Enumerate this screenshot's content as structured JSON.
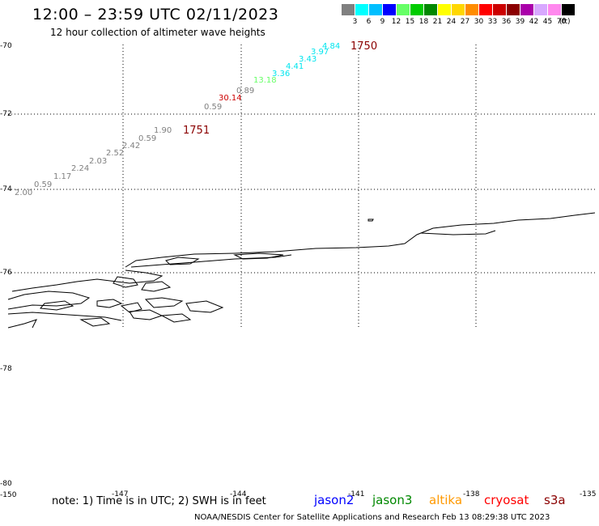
{
  "title": "12:00 – 23:59 UTC 02/11/2023",
  "subtitle": "12 hour collection of altimeter wave heights",
  "legend": {
    "unit": "(ft)",
    "items": [
      {
        "label": "3",
        "color": "#808080"
      },
      {
        "label": "6",
        "color": "#00ffff"
      },
      {
        "label": "9",
        "color": "#00bfff"
      },
      {
        "label": "12",
        "color": "#0000ff"
      },
      {
        "label": "15",
        "color": "#66ff66"
      },
      {
        "label": "18",
        "color": "#00cc00"
      },
      {
        "label": "21",
        "color": "#008800"
      },
      {
        "label": "24",
        "color": "#ffff00"
      },
      {
        "label": "27",
        "color": "#ffd700"
      },
      {
        "label": "30",
        "color": "#ff8c00"
      },
      {
        "label": "33",
        "color": "#ff0000"
      },
      {
        "label": "36",
        "color": "#cc0000"
      },
      {
        "label": "39",
        "color": "#8b0000"
      },
      {
        "label": "42",
        "color": "#aa00aa"
      },
      {
        "label": "45",
        "color": "#d8a8ff"
      },
      {
        "label": "70",
        "color": "#ff88ee"
      },
      {
        "label": "",
        "color": "#000000"
      }
    ]
  },
  "axes": {
    "lat_labels": [
      "-70",
      "-72",
      "-74",
      "-76",
      "-78",
      "-80"
    ],
    "lon_labels": [
      "-150",
      "-147",
      "-144",
      "-141",
      "-138",
      "-135"
    ]
  },
  "passes": [
    {
      "label": "1750"
    },
    {
      "label": "1751"
    }
  ],
  "observations": [
    {
      "value": "4.84",
      "color": "#00e5ee"
    },
    {
      "value": "3.97",
      "color": "#00e5ee"
    },
    {
      "value": "3.43",
      "color": "#00e5ee"
    },
    {
      "value": "4.41",
      "color": "#00e5ee"
    },
    {
      "value": "3.36",
      "color": "#00e5ee"
    },
    {
      "value": "13.18",
      "color": "#66ff66"
    },
    {
      "value": "0.89",
      "color": "#808080"
    },
    {
      "value": "30.14",
      "color": "#cc0000"
    },
    {
      "value": "0.59",
      "color": "#808080"
    },
    {
      "value": "1.90",
      "color": "#808080"
    },
    {
      "value": "0.59",
      "color": "#808080"
    },
    {
      "value": "2.42",
      "color": "#808080"
    },
    {
      "value": "2.52",
      "color": "#808080"
    },
    {
      "value": "2.03",
      "color": "#808080"
    },
    {
      "value": "2.24",
      "color": "#808080"
    },
    {
      "value": "1.17",
      "color": "#808080"
    },
    {
      "value": "0.59",
      "color": "#808080"
    },
    {
      "value": "2.00",
      "color": "#808080"
    }
  ],
  "note": "note:  1) Time is in UTC; 2) SWH is in feet",
  "satellites": [
    {
      "name": "jason2",
      "color": "#0000ff"
    },
    {
      "name": "jason3",
      "color": "#008800"
    },
    {
      "name": "altika",
      "color": "#ff9900"
    },
    {
      "name": "cryosat",
      "color": "#ff0000"
    },
    {
      "name": "s3a",
      "color": "#8b0000"
    }
  ],
  "credit": "NOAA/NESDIS Center for Satellite Applications and Research    Feb 13 08:29:38 UTC 2023"
}
